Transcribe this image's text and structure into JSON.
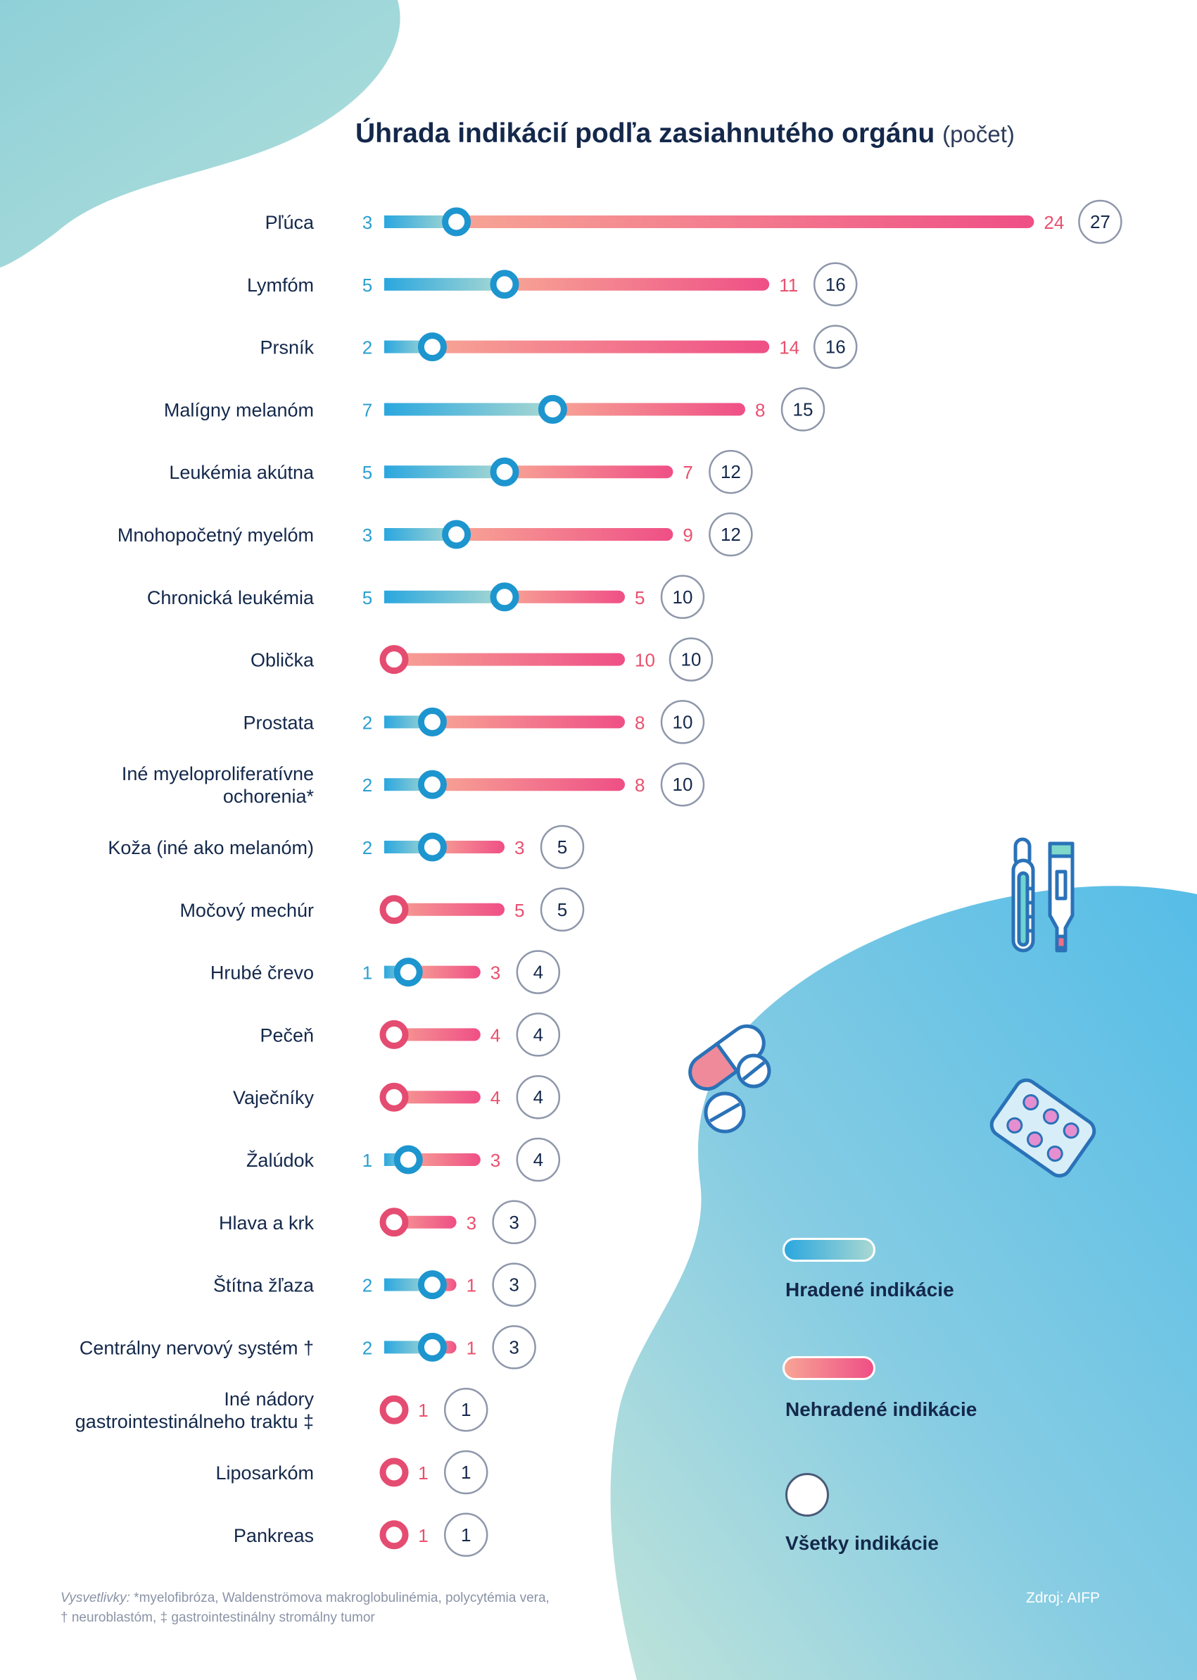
{
  "title": "Úhrada indikácií podľa zasiahnutého orgánu",
  "title_unit": "(počet)",
  "colors": {
    "reimbursed_start": "#2aa7df",
    "reimbursed_end": "#a9d8d2",
    "unreimbursed_start": "#f7a495",
    "unreimbursed_end": "#ef4f86",
    "reimbursed_text": "#2b9fd2",
    "unreimbursed_text": "#e9506e",
    "total_circle": "#8e97aa",
    "text_dark": "#14284b"
  },
  "chart_data": {
    "type": "bar",
    "stacked": true,
    "orientation": "horizontal",
    "categories": [
      "Pľúca",
      "Lymfóm",
      "Prsník",
      "Malígny melanóm",
      "Leukémia akútna",
      "Mnohopočetný myelóm",
      "Chronická leukémia",
      "Oblička",
      "Prostata",
      "Iné myeloproliferatívne ochorenia*",
      "Koža (iné ako melanóm)",
      "Močový mechúr",
      "Hrubé črevo",
      "Pečeň",
      "Vaječníky",
      "Žalúdok",
      "Hlava a krk",
      "Štítna žľaza",
      "Centrálny nervový systém †",
      "Iné nádory gastrointestinálneho traktu ‡",
      "Liposarkóm",
      "Pankreas"
    ],
    "category_lines": [
      [
        "Pľúca"
      ],
      [
        "Lymfóm"
      ],
      [
        "Prsník"
      ],
      [
        "Malígny melanóm"
      ],
      [
        "Leukémia akútna"
      ],
      [
        "Mnohopočetný myelóm"
      ],
      [
        "Chronická leukémia"
      ],
      [
        "Oblička"
      ],
      [
        "Prostata"
      ],
      [
        "Iné myeloproliferatívne",
        "ochorenia*"
      ],
      [
        "Koža (iné ako melanóm)"
      ],
      [
        "Močový mechúr"
      ],
      [
        "Hrubé črevo"
      ],
      [
        "Pečeň"
      ],
      [
        "Vaječníky"
      ],
      [
        "Žalúdok"
      ],
      [
        "Hlava a krk"
      ],
      [
        "Štítna žľaza"
      ],
      [
        "Centrálny nervový systém †"
      ],
      [
        "Iné nádory",
        "gastrointestinálneho traktu ‡"
      ],
      [
        "Liposarkóm"
      ],
      [
        "Pankreas"
      ]
    ],
    "series": [
      {
        "name": "Hradené indikácie",
        "values": [
          3,
          5,
          2,
          7,
          5,
          3,
          5,
          0,
          2,
          2,
          2,
          0,
          1,
          0,
          0,
          1,
          0,
          2,
          2,
          0,
          0,
          0
        ]
      },
      {
        "name": "Nehradené indikácie",
        "values": [
          24,
          11,
          14,
          8,
          7,
          9,
          5,
          10,
          8,
          8,
          3,
          5,
          3,
          4,
          4,
          3,
          3,
          1,
          1,
          1,
          1,
          1
        ]
      }
    ],
    "totals_name": "Všetky indikácie",
    "totals": [
      27,
      16,
      16,
      15,
      12,
      12,
      10,
      10,
      10,
      10,
      5,
      5,
      4,
      4,
      4,
      4,
      3,
      3,
      3,
      1,
      1,
      1
    ],
    "xlim": [
      0,
      27
    ],
    "legend_position": "bottom-right"
  },
  "legend": {
    "reimbursed": "Hradené indikácie",
    "unreimbursed": "Nehradené indikácie",
    "all": "Všetky indikácie"
  },
  "footnote": {
    "lead": "Vysvetlivky:",
    "line1": " *myelofibróza, Waldenströmova makroglobulinémia, polycytémia vera,",
    "line2": "† neuroblastóm, ‡ gastrointestinálny stromálny tumor"
  },
  "source": "Zdroj: AIFP"
}
